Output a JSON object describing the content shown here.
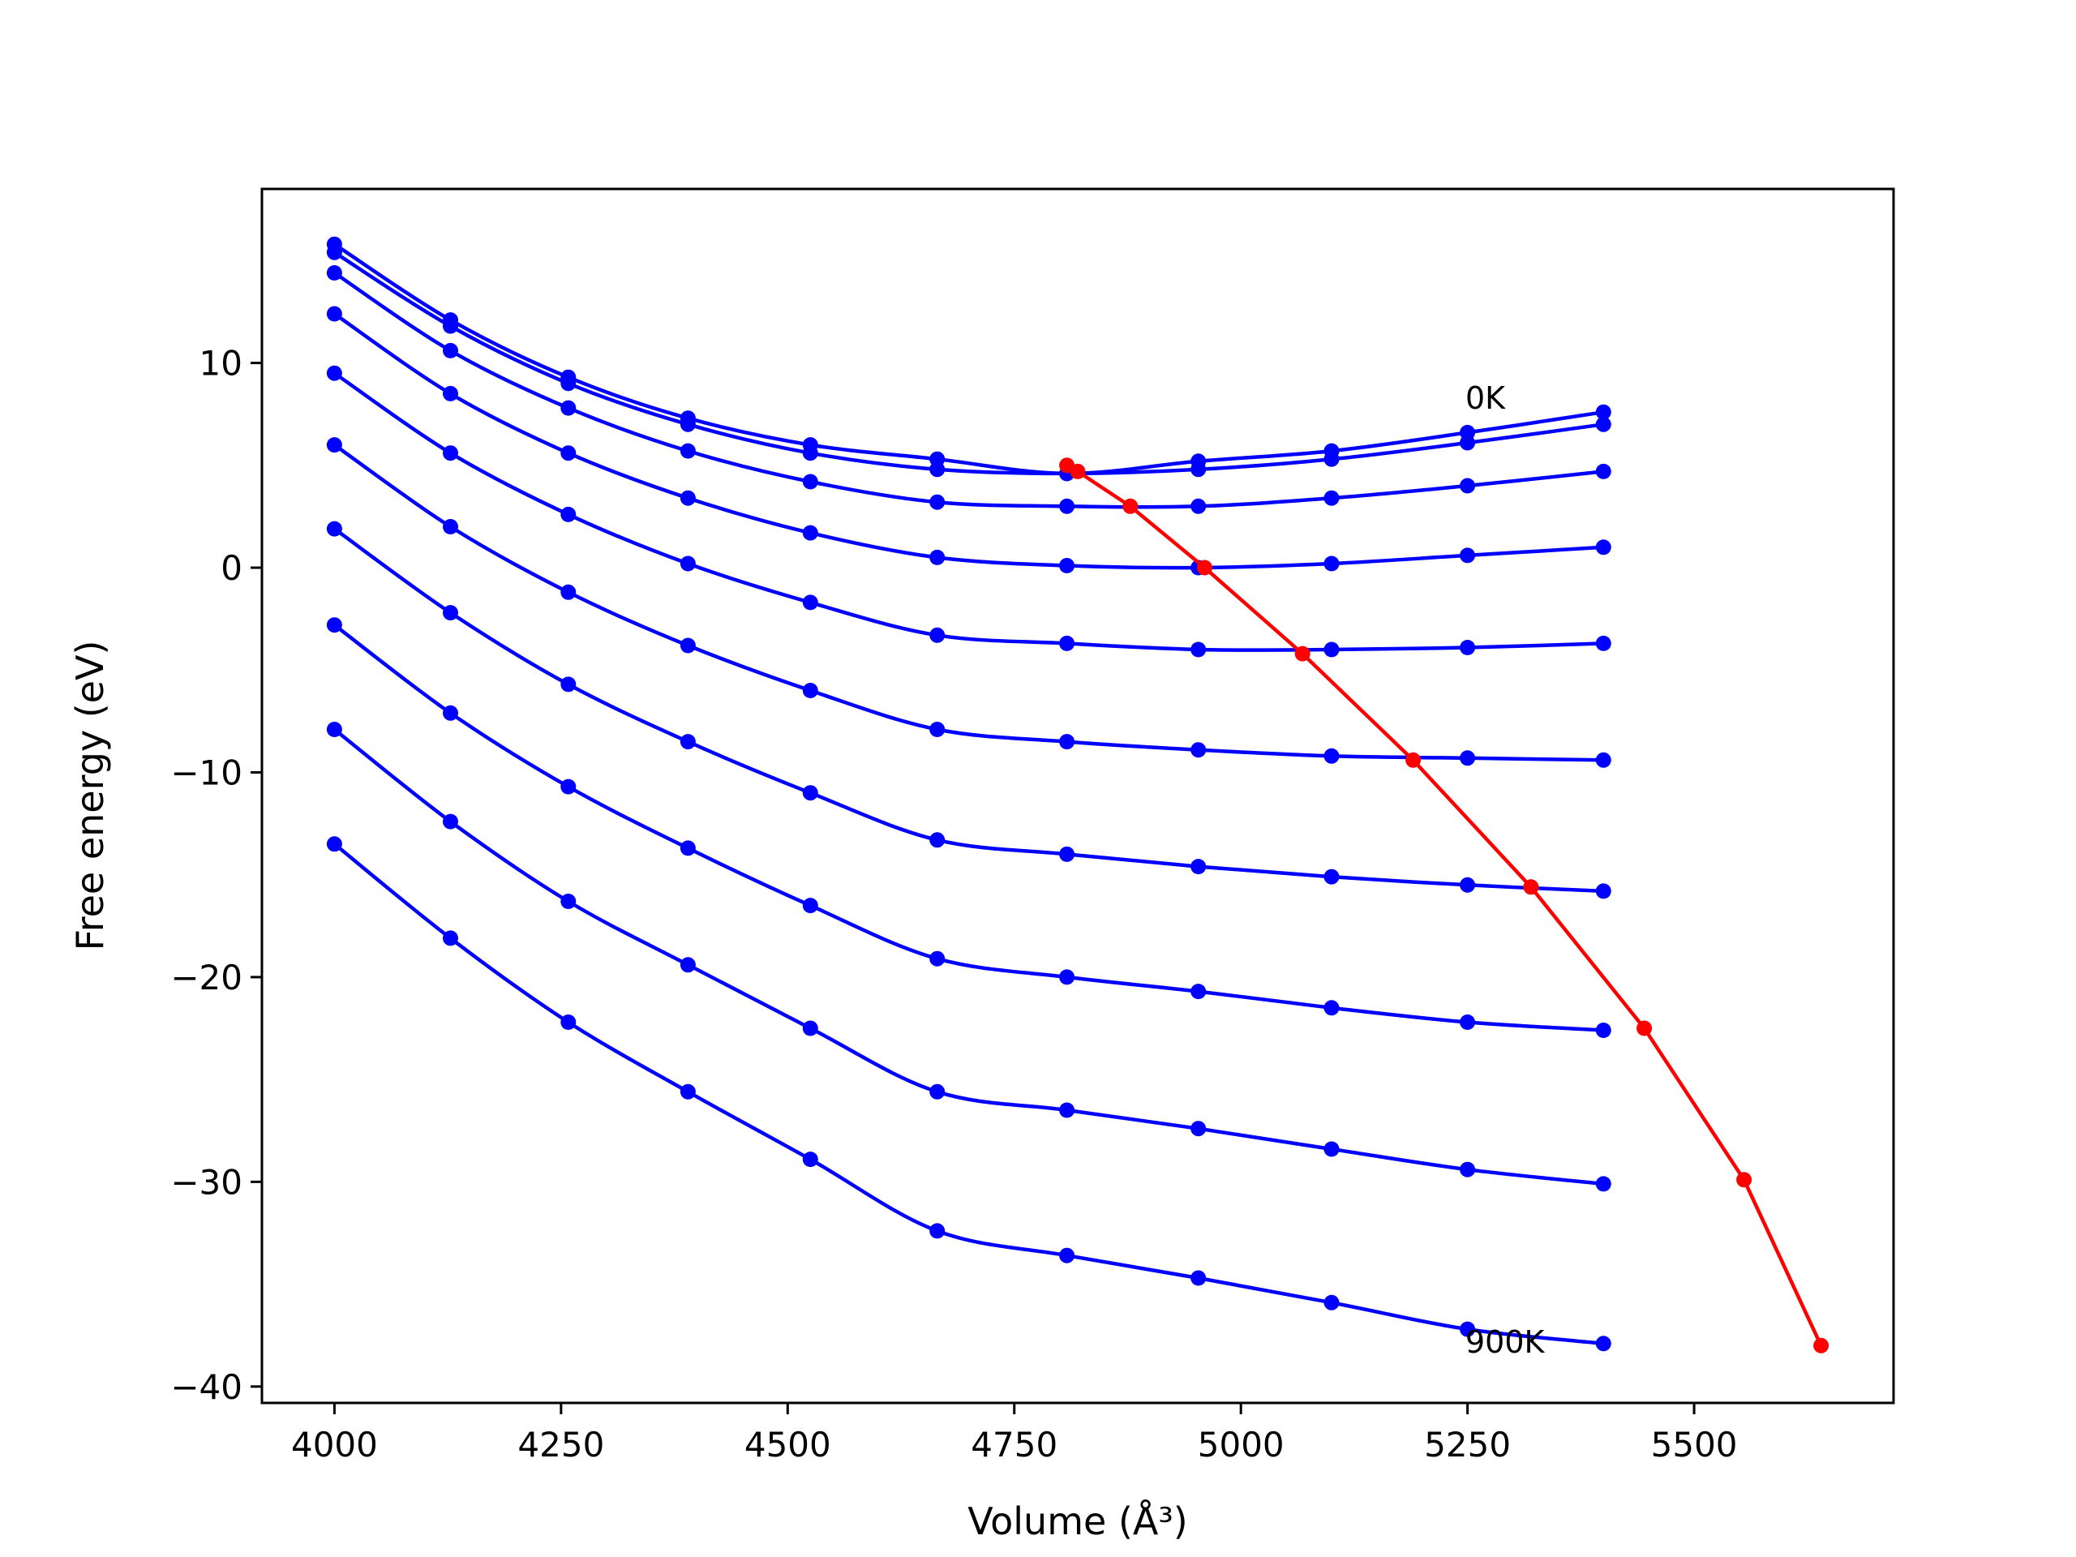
{
  "chart_data": {
    "type": "line",
    "xlabel": "Volume (Å³)",
    "ylabel": "Free energy (eV)",
    "xlim": [
      3920,
      5720
    ],
    "ylim": [
      -40.8,
      18.5
    ],
    "xticks": [
      4000,
      4250,
      4500,
      4750,
      5000,
      5250,
      5500
    ],
    "yticks": [
      -40,
      -30,
      -20,
      -10,
      0,
      10
    ],
    "grid": false,
    "colors": {
      "curves": "#0000ff",
      "minima": "#ff0000",
      "axes": "#000000"
    },
    "annotations": [
      {
        "text": "0K",
        "x": 5245,
        "y": 7.2
      },
      {
        "text": "900K",
        "x": 5245,
        "y": -38.3
      }
    ],
    "volumes": [
      4000,
      4128,
      4258,
      4390,
      4525,
      4665,
      4808,
      4953,
      5100,
      5250,
      5400
    ],
    "curves": [
      {
        "points": [
          15.8,
          12.1,
          9.3,
          7.3,
          6.0,
          5.3,
          4.6,
          5.2,
          5.7,
          6.6,
          7.6
        ]
      },
      {
        "points": [
          15.4,
          11.8,
          9.0,
          7.0,
          5.6,
          4.8,
          4.6,
          4.8,
          5.3,
          6.1,
          7.0
        ]
      },
      {
        "points": [
          14.4,
          10.6,
          7.8,
          5.7,
          4.2,
          3.2,
          3.0,
          3.0,
          3.4,
          4.0,
          4.7
        ]
      },
      {
        "points": [
          12.4,
          8.5,
          5.6,
          3.4,
          1.7,
          0.5,
          0.1,
          0.0,
          0.2,
          0.6,
          1.0
        ]
      },
      {
        "points": [
          9.5,
          5.6,
          2.6,
          0.2,
          -1.7,
          -3.3,
          -3.7,
          -4.0,
          -4.0,
          -3.9,
          -3.7
        ]
      },
      {
        "points": [
          6.0,
          2.0,
          -1.2,
          -3.8,
          -6.0,
          -7.9,
          -8.5,
          -8.9,
          -9.2,
          -9.3,
          -9.4
        ]
      },
      {
        "points": [
          1.9,
          -2.2,
          -5.7,
          -8.5,
          -11.0,
          -13.3,
          -14.0,
          -14.6,
          -15.1,
          -15.5,
          -15.8
        ]
      },
      {
        "points": [
          -2.8,
          -7.1,
          -10.7,
          -13.7,
          -16.5,
          -19.1,
          -20.0,
          -20.7,
          -21.5,
          -22.2,
          -22.6
        ]
      },
      {
        "points": [
          -7.9,
          -12.4,
          -16.3,
          -19.4,
          -22.5,
          -25.6,
          -26.5,
          -27.4,
          -28.4,
          -29.4,
          -30.1
        ]
      },
      {
        "points": [
          -13.5,
          -18.1,
          -22.2,
          -25.6,
          -28.9,
          -32.4,
          -33.6,
          -34.7,
          -35.9,
          -37.2,
          -37.9
        ]
      }
    ],
    "minima": {
      "x": [
        4808,
        4820,
        4878,
        4960,
        5068,
        5190,
        5320,
        5445,
        5555,
        5640
      ],
      "y": [
        5.0,
        4.7,
        3.0,
        0.0,
        -4.2,
        -9.4,
        -15.6,
        -22.5,
        -29.9,
        -38.0
      ]
    }
  }
}
